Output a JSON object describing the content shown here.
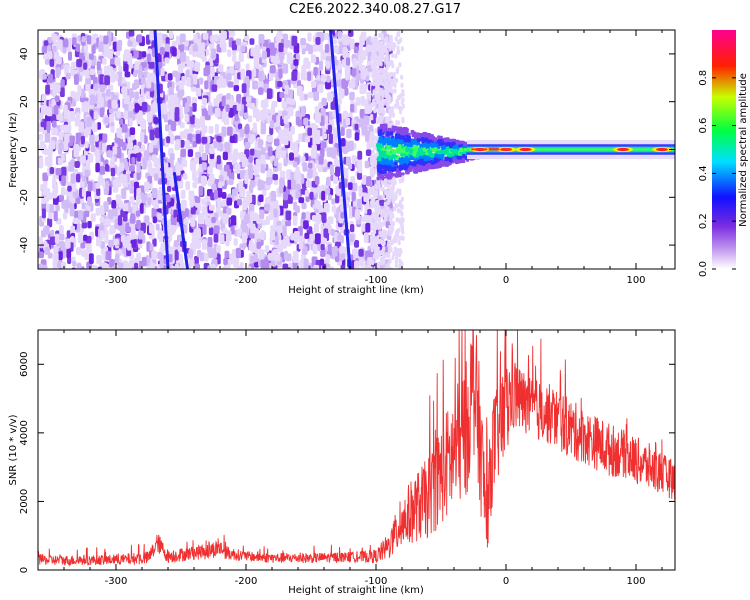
{
  "figure": {
    "title": "C2E6.2022.340.08.27.G17"
  },
  "chart_data": [
    {
      "type": "heatmap",
      "xlabel": "Height of straight line (km)",
      "ylabel": "Frequency (Hz)",
      "xlim": [
        -360,
        130
      ],
      "ylim": [
        -50,
        50
      ],
      "xticks": [
        -300,
        -200,
        -100,
        0,
        100
      ],
      "yticks": [
        -40,
        -20,
        0,
        20,
        40
      ],
      "colorbar": {
        "label": "Normalized spectral amplitude",
        "ticks": [
          0.0,
          0.2,
          0.4,
          0.6,
          0.8
        ],
        "range": [
          0,
          1
        ],
        "colormap": [
          "#ffffff",
          "#8a2be2",
          "#0000ff",
          "#00ffff",
          "#00ff00",
          "#ffff00",
          "#ff0000",
          "#ff00aa"
        ]
      },
      "features": {
        "noise_region_x": [
          -360,
          -90
        ],
        "transition_region_x": [
          -100,
          -20
        ],
        "signal_line_frequency": 0,
        "sweep_lines": [
          {
            "x_start": -270,
            "y_start": 50,
            "x_end": -260,
            "y_end": -50
          },
          {
            "x_start": -255,
            "y_start": -10,
            "x_end": -245,
            "y_end": -50
          },
          {
            "x_start": -135,
            "y_start": 50,
            "x_end": -120,
            "y_end": -50
          }
        ],
        "hot_spots_x": [
          -20,
          0,
          15,
          90,
          120
        ]
      }
    },
    {
      "type": "line",
      "xlabel": "Height of straight line (km)",
      "ylabel": "SNR (10 * v/v)",
      "xlim": [
        -360,
        130
      ],
      "ylim": [
        0,
        7000
      ],
      "xticks": [
        -300,
        -200,
        -100,
        0,
        100
      ],
      "yticks": [
        0,
        2000,
        4000,
        6000
      ],
      "series": [
        {
          "color": "#f03030",
          "x": [
            -360,
            -340,
            -300,
            -275,
            -268,
            -260,
            -240,
            -230,
            -220,
            -215,
            -200,
            -180,
            -150,
            -120,
            -100,
            -90,
            -80,
            -70,
            -60,
            -50,
            -40,
            -30,
            -25,
            -20,
            -15,
            -10,
            0,
            5,
            10,
            20,
            30,
            40,
            50,
            60,
            70,
            80,
            90,
            100,
            110,
            120,
            130
          ],
          "y": [
            300,
            280,
            300,
            350,
            800,
            400,
            500,
            550,
            650,
            500,
            400,
            350,
            350,
            380,
            400,
            700,
            1400,
            1800,
            2100,
            2800,
            3400,
            4200,
            5600,
            3800,
            1500,
            3600,
            4600,
            5200,
            5000,
            4700,
            4600,
            4400,
            4100,
            3900,
            3700,
            3500,
            3400,
            3200,
            3000,
            2800,
            2600
          ],
          "noise_amplitude": [
            150,
            150,
            150,
            200,
            300,
            200,
            200,
            250,
            250,
            200,
            150,
            150,
            150,
            150,
            200,
            400,
            800,
            1000,
            1200,
            1500,
            1800,
            2000,
            2200,
            2000,
            1200,
            1500,
            1500,
            1200,
            1000,
            900,
            900,
            900,
            900,
            800,
            800,
            800,
            700,
            700,
            700,
            600,
            600
          ]
        }
      ]
    }
  ]
}
